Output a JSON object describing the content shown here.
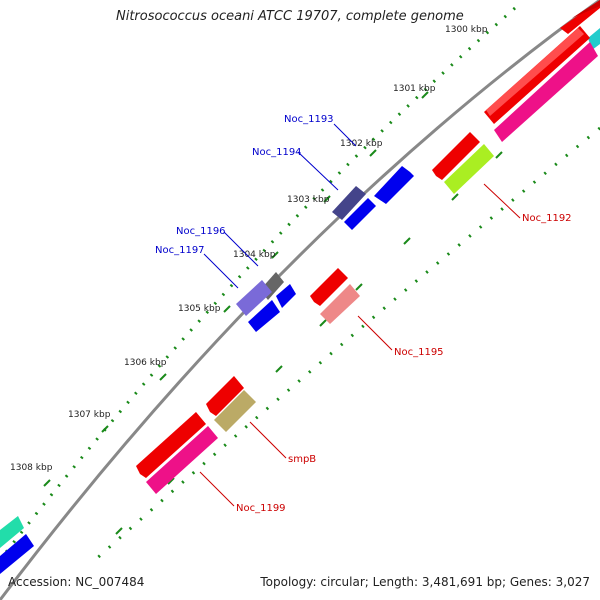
{
  "header": {
    "title": "Nitrosococcus oceani ATCC 19707, complete genome"
  },
  "footer": {
    "accession": "Accession: NC_007484",
    "summary": "Topology: circular; Length: 3,481,691 bp; Genes: 3,027"
  },
  "scale_labels": [
    "1300 kbp",
    "1301 kbp",
    "1302 kbp",
    "1303 kbp",
    "1304 kbp",
    "1305 kbp",
    "1306 kbp",
    "1307 kbp",
    "1308 kbp"
  ],
  "gene_labels": [
    {
      "text": "Noc_1193",
      "strand": "forward",
      "color": "#0000cc"
    },
    {
      "text": "Noc_1194",
      "strand": "forward",
      "color": "#0000cc"
    },
    {
      "text": "Noc_1196",
      "strand": "forward",
      "color": "#0000cc"
    },
    {
      "text": "Noc_1197",
      "strand": "forward",
      "color": "#0000cc"
    },
    {
      "text": "Noc_1192",
      "strand": "reverse",
      "color": "#cc0000"
    },
    {
      "text": "Noc_1195",
      "strand": "reverse",
      "color": "#cc0000"
    },
    {
      "text": "smpB",
      "strand": "reverse",
      "color": "#cc0000"
    },
    {
      "text": "Noc_1199",
      "strand": "reverse",
      "color": "#cc0000"
    }
  ],
  "colors": {
    "backbone": "#808080",
    "tick_dot": "#1a8a1a",
    "forward_cds": "#0000ee",
    "reverse_cds": "#ee0000",
    "gc_pink": "#ee1188",
    "label_forward": "#0000cc",
    "label_reverse": "#cc0000"
  }
}
